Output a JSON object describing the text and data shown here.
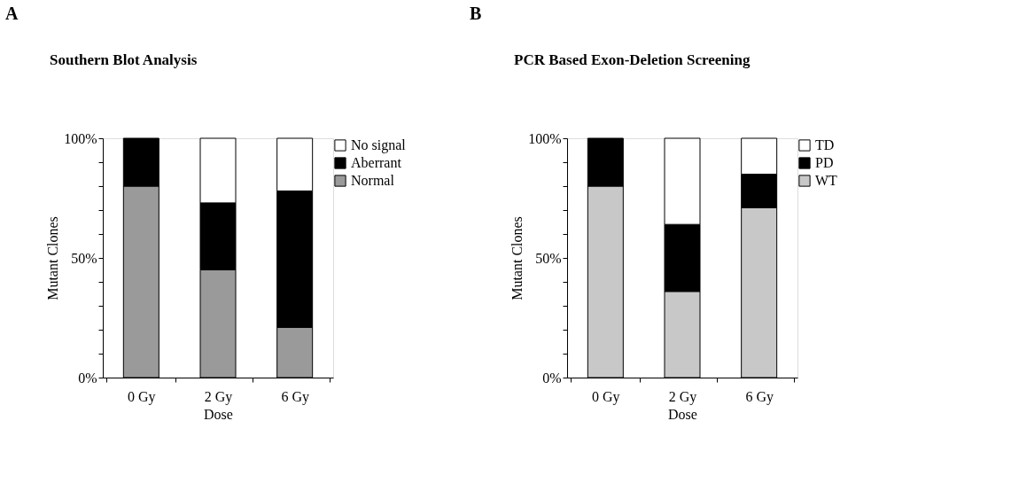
{
  "chart_data": [
    {
      "type": "bar",
      "title": "Southern Blot Analysis",
      "xlabel": "Dose",
      "ylabel": "Mutant Clones",
      "annotations": [
        "A"
      ],
      "stacked": true,
      "legend": "top right",
      "categories": [
        "0 Gy",
        "2 Gy",
        "6 Gy"
      ],
      "series": [
        {
          "name": "Normal",
          "color": "#9a9a9a",
          "values": [
            80,
            45,
            21
          ]
        },
        {
          "name": "Aberrant",
          "color": "#000000",
          "values": [
            20,
            28,
            57
          ]
        },
        {
          "name": "No signal",
          "color": "#ffffff",
          "values": [
            0,
            27,
            22
          ]
        }
      ],
      "ylim": [
        0,
        100
      ],
      "yticks": [
        {
          "value": 0,
          "label": "0%"
        },
        {
          "value": 10,
          "label": null
        },
        {
          "value": 20,
          "label": null
        },
        {
          "value": 30,
          "label": null
        },
        {
          "value": 40,
          "label": null
        },
        {
          "value": 50,
          "label": "50%"
        },
        {
          "value": 60,
          "label": null
        },
        {
          "value": 70,
          "label": null
        },
        {
          "value": 80,
          "label": null
        },
        {
          "value": 90,
          "label": null
        },
        {
          "value": 100,
          "label": "100%"
        }
      ],
      "grid": false
    },
    {
      "type": "bar",
      "title": "PCR Based Exon-Deletion Screening",
      "xlabel": "Dose",
      "ylabel": "Mutant Clones",
      "annotations": [
        "B"
      ],
      "stacked": true,
      "legend": "top right",
      "categories": [
        "0 Gy",
        "2 Gy",
        "6 Gy"
      ],
      "series": [
        {
          "name": "WT",
          "color": "#c8c8c8",
          "values": [
            80,
            36,
            71
          ]
        },
        {
          "name": "PD",
          "color": "#000000",
          "values": [
            20,
            28,
            14
          ]
        },
        {
          "name": "TD",
          "color": "#ffffff",
          "values": [
            0,
            36,
            15
          ]
        }
      ],
      "ylim": [
        0,
        100
      ],
      "yticks": [
        {
          "value": 0,
          "label": "0%"
        },
        {
          "value": 10,
          "label": null
        },
        {
          "value": 20,
          "label": null
        },
        {
          "value": 30,
          "label": null
        },
        {
          "value": 40,
          "label": null
        },
        {
          "value": 50,
          "label": "50%"
        },
        {
          "value": 60,
          "label": null
        },
        {
          "value": 70,
          "label": null
        },
        {
          "value": 80,
          "label": null
        },
        {
          "value": 90,
          "label": null
        },
        {
          "value": 100,
          "label": "100%"
        }
      ],
      "grid": false
    }
  ]
}
